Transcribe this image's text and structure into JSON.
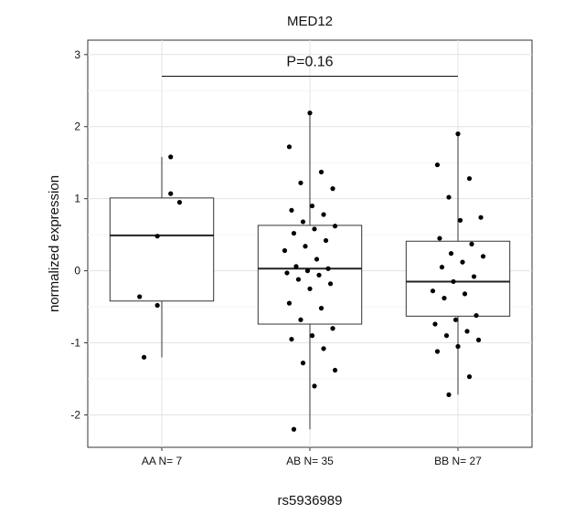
{
  "chart_data": {
    "type": "box",
    "title": "MED12",
    "xlabel": "rs5936989",
    "ylabel": "normalized expression",
    "ylim": [
      -2.45,
      3.2
    ],
    "yticks": [
      -2,
      -1,
      0,
      1,
      2,
      3
    ],
    "grid": true,
    "annotation": {
      "text": "P=0.16",
      "from": "AA N= 7",
      "to": "BB N= 27",
      "y": 2.7
    },
    "categories": [
      "AA N= 7",
      "AB N= 35",
      "BB N= 27"
    ],
    "boxes": [
      {
        "category": "AA N= 7",
        "whisker_low": -1.2,
        "q1": -0.42,
        "median": 0.49,
        "q3": 1.01,
        "whisker_high": 1.58
      },
      {
        "category": "AB N= 35",
        "whisker_low": -2.2,
        "q1": -0.74,
        "median": 0.03,
        "q3": 0.63,
        "whisker_high": 2.19
      },
      {
        "category": "BB N= 27",
        "whisker_low": -1.72,
        "q1": -0.63,
        "median": -0.15,
        "q3": 0.41,
        "whisker_high": 1.9
      }
    ],
    "points": [
      {
        "category": "AA N= 7",
        "values": [
          1.58,
          1.07,
          0.95,
          0.48,
          -0.36,
          -0.48,
          -1.2
        ],
        "jitter": [
          0.06,
          0.06,
          0.12,
          -0.03,
          -0.15,
          -0.03,
          -0.12
        ]
      },
      {
        "category": "AB N= 35",
        "values": [
          2.19,
          1.72,
          1.37,
          1.22,
          1.14,
          0.9,
          0.84,
          0.78,
          0.68,
          0.62,
          0.58,
          0.52,
          0.42,
          0.34,
          0.28,
          0.16,
          0.06,
          0.03,
          0.0,
          -0.03,
          -0.06,
          -0.12,
          -0.18,
          -0.25,
          -0.45,
          -0.52,
          -0.68,
          -0.8,
          -0.9,
          -0.95,
          -1.08,
          -1.28,
          -1.38,
          -1.6,
          -2.2
        ]
      },
      {
        "category": "BB N= 27",
        "values": [
          1.9,
          1.47,
          1.28,
          1.02,
          0.74,
          0.7,
          0.45,
          0.37,
          0.24,
          0.2,
          0.12,
          0.05,
          -0.08,
          -0.15,
          -0.28,
          -0.32,
          -0.38,
          -0.62,
          -0.68,
          -0.74,
          -0.84,
          -0.9,
          -0.96,
          -1.05,
          -1.12,
          -1.47,
          -1.72
        ]
      }
    ]
  }
}
